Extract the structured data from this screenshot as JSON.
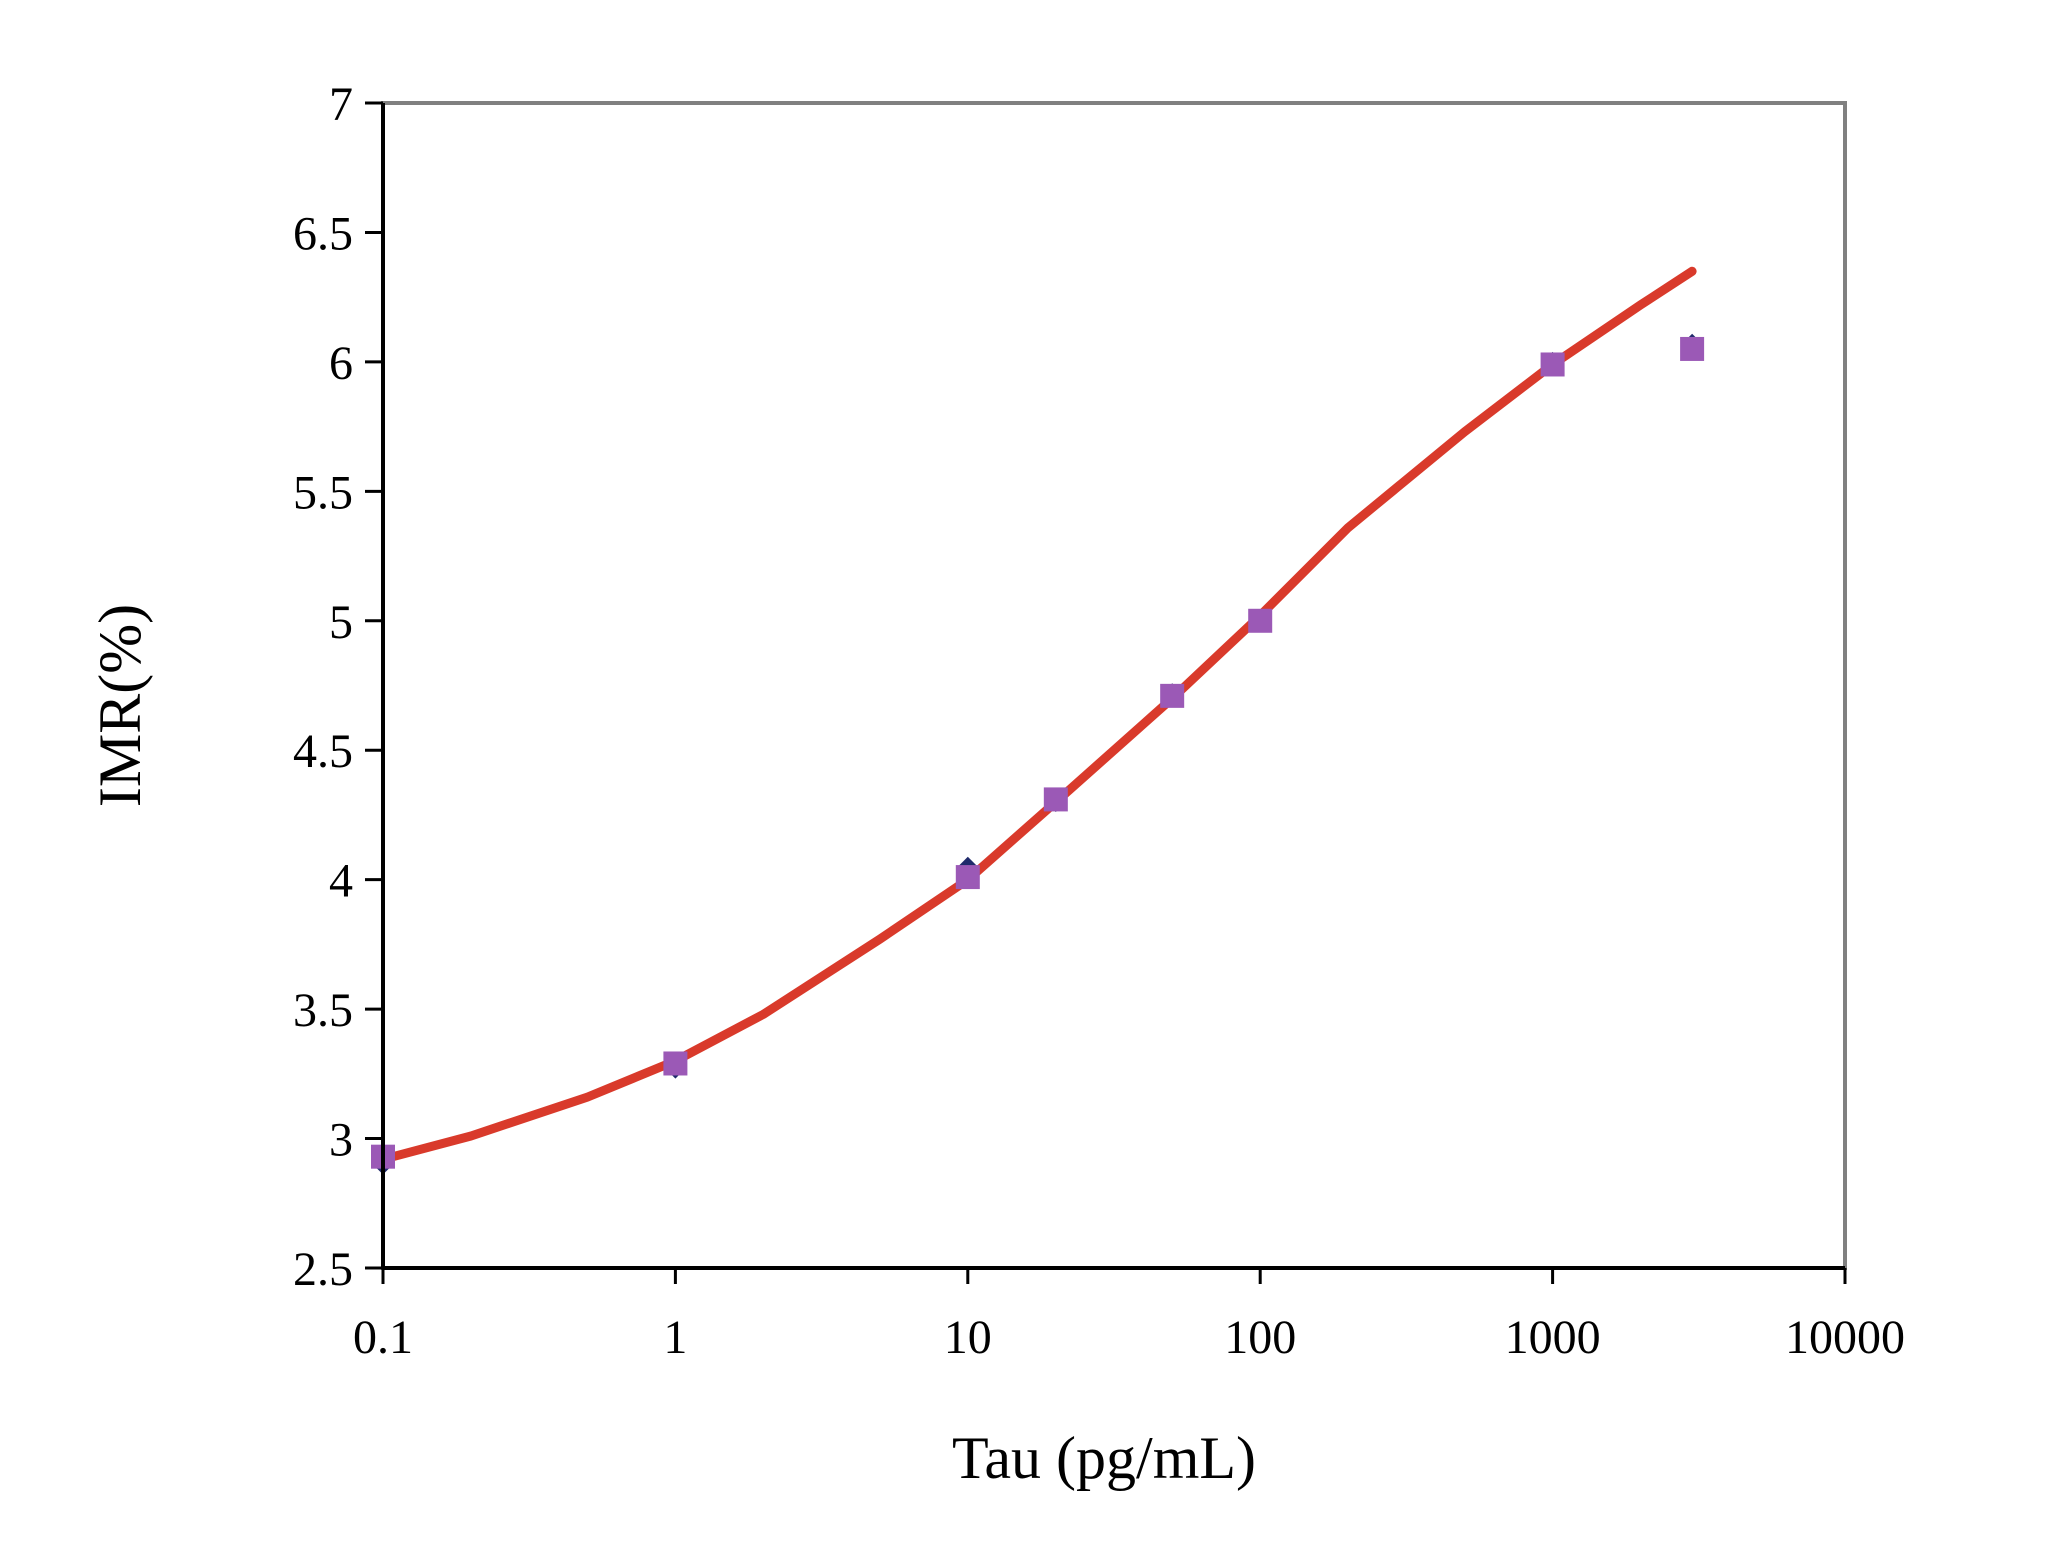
{
  "chart_data": {
    "type": "scatter",
    "xlabel": "Tau (pg/mL)",
    "ylabel": "IMR(%)",
    "x_scale": "log",
    "xlim": [
      0.1,
      10000
    ],
    "ylim": [
      2.5,
      7
    ],
    "x_ticks": [
      0.1,
      1,
      10,
      100,
      1000,
      10000
    ],
    "x_tick_labels": [
      "0.1",
      "1",
      "10",
      "100",
      "1000",
      "10000"
    ],
    "y_ticks": [
      2.5,
      3,
      3.5,
      4,
      4.5,
      5,
      5.5,
      6,
      6.5,
      7
    ],
    "y_tick_labels": [
      "2.5",
      "3",
      "3.5",
      "4",
      "4.5",
      "5",
      "5.5",
      "6",
      "6.5",
      "7"
    ],
    "grid": false,
    "series": [
      {
        "kind": "points",
        "marker": "diamond",
        "color": "#1f2a6b",
        "x": [
          0.1,
          1,
          10,
          20,
          50,
          100,
          1000,
          3000
        ],
        "y": [
          2.9,
          3.27,
          4.05,
          4.3,
          4.72,
          5.0,
          6.0,
          6.07
        ]
      },
      {
        "kind": "points",
        "marker": "square",
        "color": "#9b59b6",
        "x": [
          0.1,
          1,
          10,
          20,
          50,
          100,
          1000,
          3000
        ],
        "y": [
          2.93,
          3.29,
          4.01,
          4.31,
          4.71,
          5.0,
          5.99,
          6.05
        ]
      },
      {
        "kind": "line",
        "color": "#d93a2b",
        "x": [
          0.1,
          0.2,
          0.5,
          1,
          2,
          5,
          10,
          20,
          50,
          100,
          200,
          500,
          1000,
          2000,
          3000
        ],
        "y": [
          2.92,
          3.01,
          3.16,
          3.3,
          3.48,
          3.77,
          4.0,
          4.3,
          4.7,
          5.02,
          5.36,
          5.73,
          5.99,
          6.22,
          6.35
        ]
      }
    ]
  }
}
